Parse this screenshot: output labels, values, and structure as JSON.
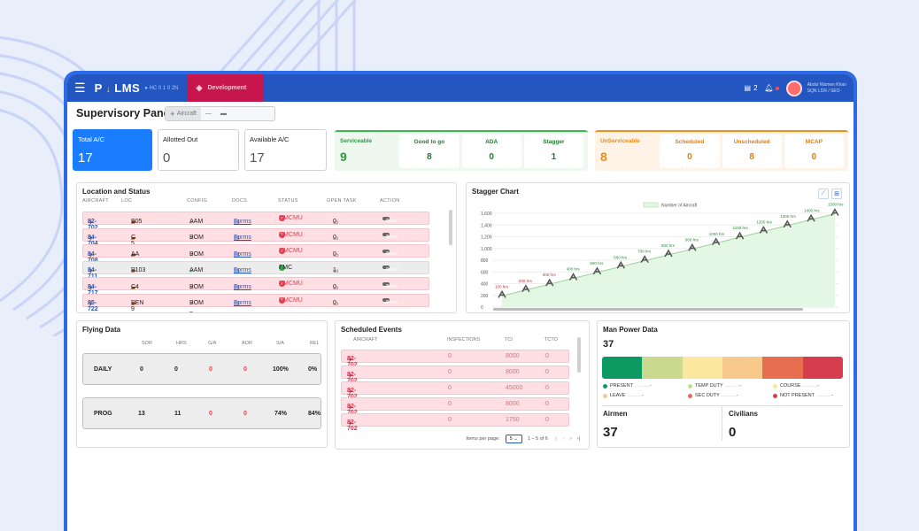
{
  "app": {
    "brand": "P",
    "brand_arrow": "↓",
    "brand_rest": "LMS",
    "brand_sub": "● HC 0 1 0 2N",
    "env_label": "Development",
    "notif_count": "2",
    "user_name": "Abdul Wamen Khan",
    "user_role": "SQN LDR / SEO"
  },
  "header": {
    "title": "Supervisory Panel",
    "tabs": [
      {
        "label": "Aircraft"
      },
      {
        "label": "—"
      },
      {
        "label": "▬"
      }
    ]
  },
  "kpis": {
    "total": {
      "label": "Total A/C",
      "value": "17"
    },
    "allotted": {
      "label": "Allotted Out",
      "value": "0"
    },
    "available": {
      "label": "Available A/C",
      "value": "17"
    }
  },
  "serviceable": {
    "label": "Serviceable",
    "value": "9",
    "items": [
      {
        "label": "Good to go",
        "value": "8"
      },
      {
        "label": "ADA",
        "value": "0"
      },
      {
        "label": "Stagger",
        "value": "1"
      }
    ]
  },
  "unserviceable": {
    "label": "UnServiceable",
    "value": "8",
    "items": [
      {
        "label": "Scheduled",
        "value": "0"
      },
      {
        "label": "Unscheduled",
        "value": "8"
      },
      {
        "label": "MCAP",
        "value": "0"
      }
    ]
  },
  "location": {
    "title": "Location and Status",
    "columns": [
      "AIRCRAFT",
      "LOC",
      "CONFIG",
      "DOCS",
      "STATUS",
      "OPEN TASK",
      "ACTION"
    ],
    "rows": [
      {
        "aircraft": "82-702",
        "loc": "B05",
        "config": "AAM _",
        "docs": "Forms",
        "status": "NMCMU",
        "open": "0",
        "action": "Event",
        "ok": false
      },
      {
        "aircraft": "84-704",
        "loc": "C 5",
        "config": "BOM _",
        "docs": "Forms",
        "status": "NMCMU",
        "open": "0",
        "action": "Event",
        "ok": false
      },
      {
        "aircraft": "84-708",
        "loc": "AA",
        "config": "BOM _",
        "docs": "Forms",
        "status": "NMCMU",
        "open": "0",
        "action": "Event",
        "ok": false
      },
      {
        "aircraft": "84-711",
        "loc": "P103",
        "config": "AAM _",
        "docs": "Forms",
        "status": "FMC",
        "open": "1",
        "action": "Event",
        "ok": true
      },
      {
        "aircraft": "84-717",
        "loc": "C4",
        "config": "BOM _",
        "docs": "Forms",
        "status": "NMCMU",
        "open": "0",
        "action": "Event",
        "ok": false
      },
      {
        "aircraft": "85-722",
        "loc": "PEN 9",
        "config": "BOM _",
        "docs": "Forms",
        "status": "NMCMU",
        "open": "0",
        "action": "Event",
        "ok": false
      }
    ]
  },
  "stagger": {
    "title": "Stagger Chart",
    "legend": "Number of Aircraft",
    "chart_data": {
      "type": "line",
      "x_labels": [
        "100 hrs",
        "200 hrs",
        "300 hrs",
        "400 hrs",
        "500 hrs",
        "600 hrs",
        "700 hrs",
        "800 hrs",
        "900 hrs",
        "1000 hrs",
        "1100 hrs",
        "1200 hrs",
        "1300 hrs",
        "1400 hrs",
        "1500 hrs"
      ],
      "series": [
        {
          "name": "Number of Aircraft",
          "values": [
            100,
            200,
            300,
            400,
            500,
            600,
            700,
            800,
            900,
            1000,
            1100,
            1200,
            1300,
            1400,
            1500
          ]
        }
      ],
      "yticks": [
        "0",
        "200",
        "400",
        "600",
        "800",
        "1,000",
        "1,200",
        "1,400",
        "1,600"
      ],
      "ylim": [
        0,
        1600
      ]
    }
  },
  "flying": {
    "title": "Flying Data",
    "columns": [
      "SOR",
      "HRS",
      "G/A",
      "AOR",
      "S/A",
      "REL"
    ],
    "rows": [
      {
        "label": "DAILY",
        "values": [
          "0",
          "0",
          "0",
          "0",
          "100%",
          "0%"
        ]
      },
      {
        "label": "PROG",
        "values": [
          "13",
          "11",
          "0",
          "0",
          "74%",
          "84%"
        ]
      }
    ]
  },
  "scheduled": {
    "title": "Scheduled Events",
    "columns": [
      "AIRCRAFT",
      "INSPECTIONS",
      "TCI",
      "TCTO"
    ],
    "rows": [
      {
        "aircraft": "82-702",
        "insp": "0",
        "tci": "8000",
        "tcto": "0"
      },
      {
        "aircraft": "82-702",
        "insp": "0",
        "tci": "8000",
        "tcto": "0"
      },
      {
        "aircraft": "82-702",
        "insp": "0",
        "tci": "45000",
        "tcto": "0"
      },
      {
        "aircraft": "82-702",
        "insp": "0",
        "tci": "8000",
        "tcto": "0"
      },
      {
        "aircraft": "82-702",
        "insp": "0",
        "tci": "1750",
        "tcto": "0"
      }
    ],
    "pager": {
      "label": "Items per page:",
      "size": "5",
      "range": "1 – 5 of 6"
    }
  },
  "manpower": {
    "title": "Man Power Data",
    "total": "37",
    "bar_colors": [
      "#0b9a62",
      "#c9d98f",
      "#fbe79e",
      "#f7c98b",
      "#e66e4f",
      "#d73c4f"
    ],
    "legend": [
      {
        "label": "PRESENT",
        "value": "-",
        "color": "#0b9a62"
      },
      {
        "label": "TEMP DUTY",
        "value": "-",
        "color": "#c9d98f"
      },
      {
        "label": "COURSE",
        "value": "-",
        "color": "#fbe79e"
      },
      {
        "label": "LEAVE",
        "value": "-",
        "color": "#f7c98b"
      },
      {
        "label": "SEC DUTY",
        "value": "-",
        "color": "#e66e4f"
      },
      {
        "label": "NOT PRESENT",
        "value": "-",
        "color": "#d73c4f"
      }
    ],
    "airmen": {
      "label": "Airmen",
      "value": "37"
    },
    "civilians": {
      "label": "Civilians",
      "value": "0"
    }
  }
}
